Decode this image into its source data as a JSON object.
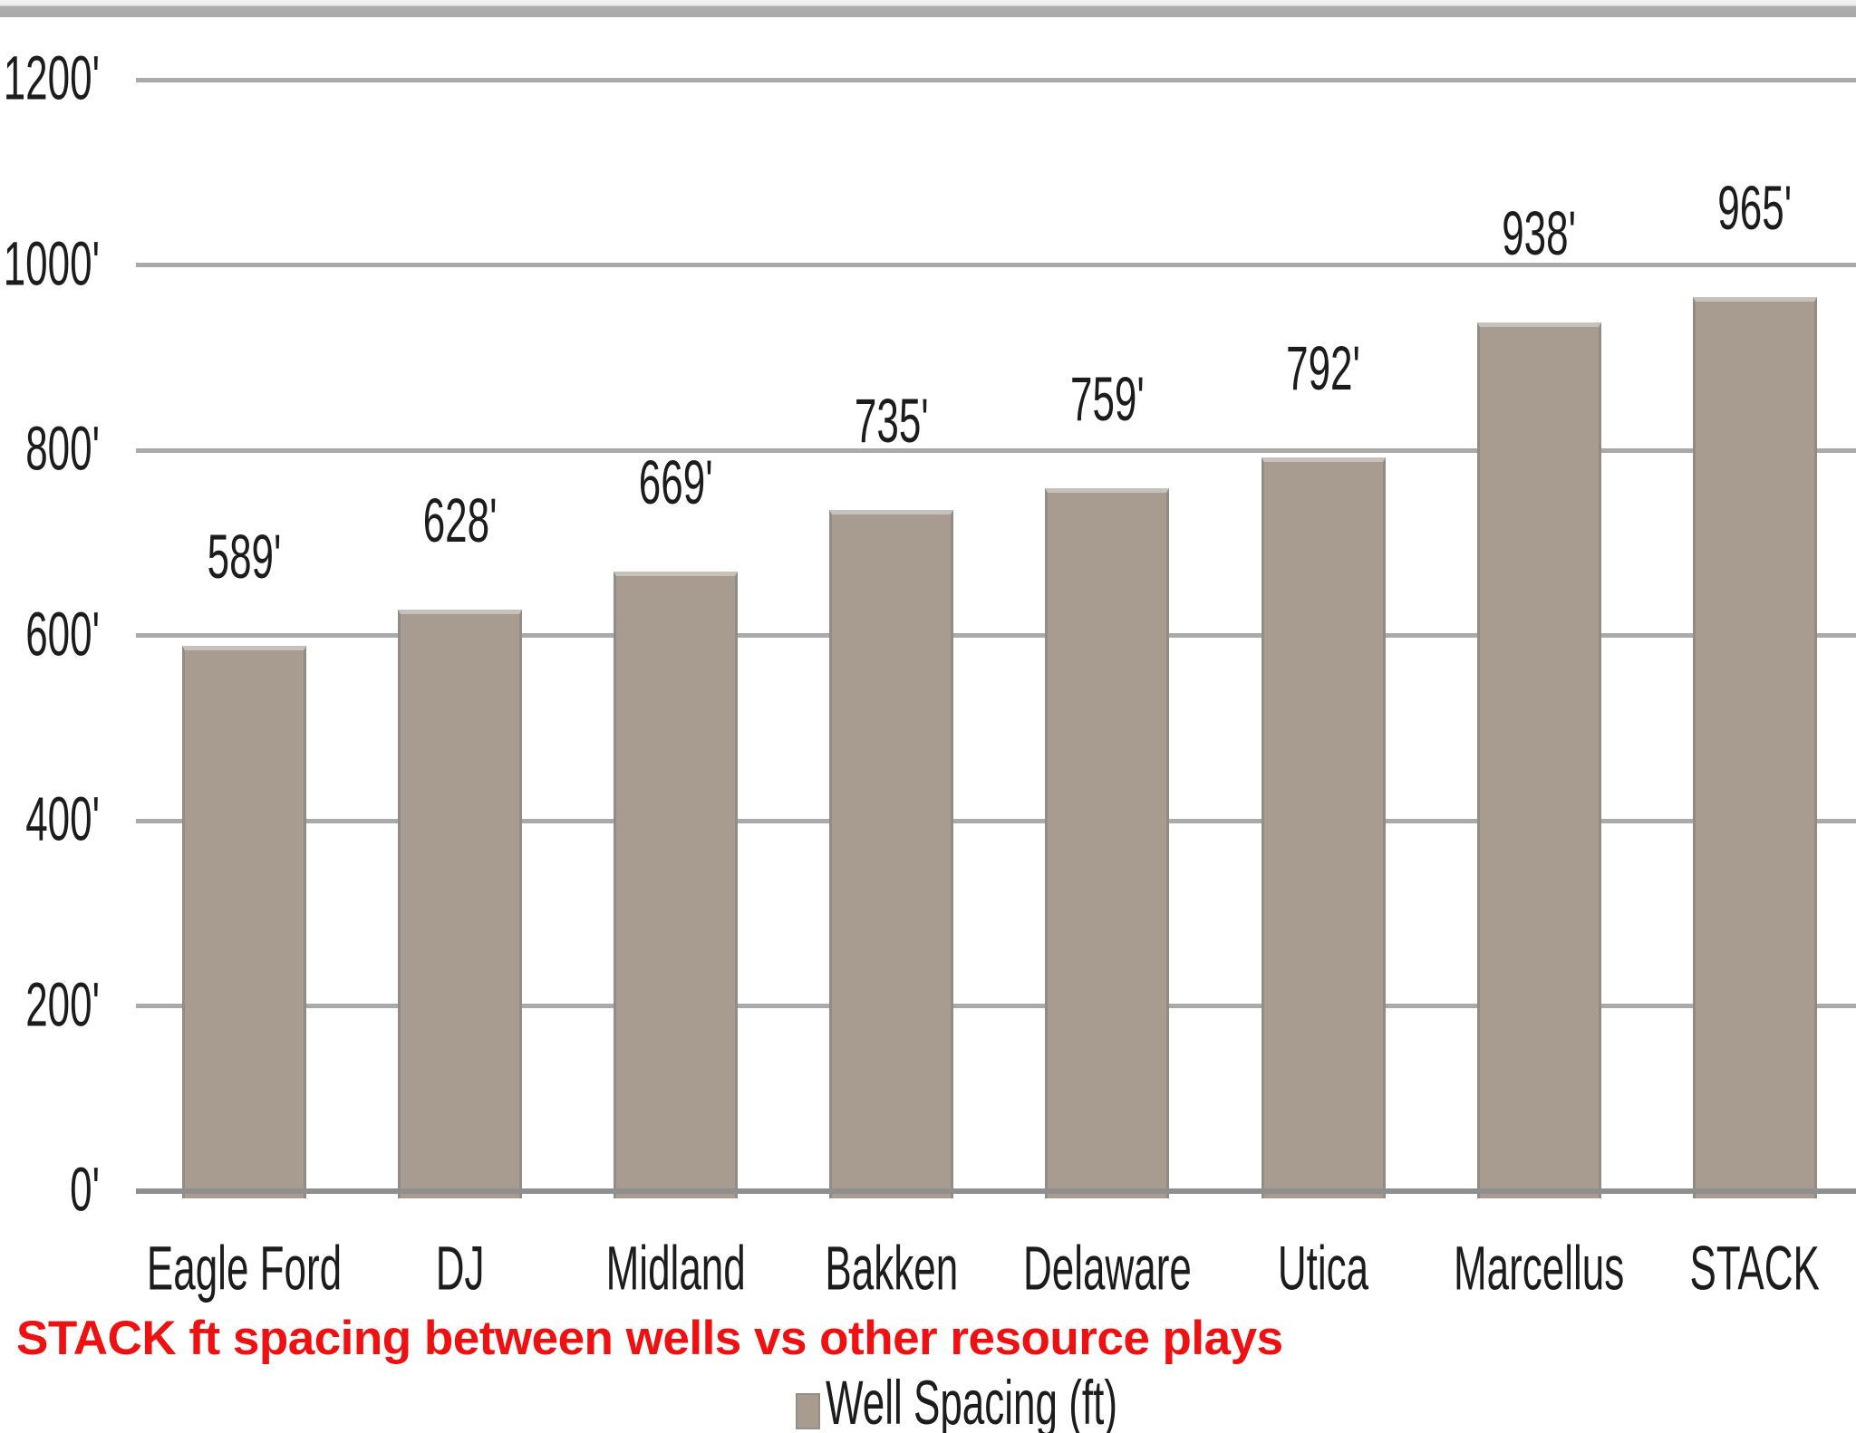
{
  "page": {
    "background": "#ffffff",
    "top_strip_light": "#ececec",
    "top_strip_dark": "#a9a9a9"
  },
  "chart_data": {
    "type": "bar",
    "categories": [
      "Eagle Ford",
      "DJ",
      "Midland",
      "Bakken",
      "Delaware",
      "Utica",
      "Marcellus",
      "STACK"
    ],
    "values": [
      589,
      628,
      669,
      735,
      759,
      792,
      938,
      965
    ],
    "value_labels": [
      "589'",
      "628'",
      "669'",
      "735'",
      "759'",
      "792'",
      "938'",
      "965'"
    ],
    "value_suffix": "'",
    "title": "",
    "xlabel": "",
    "ylabel": "",
    "ylim": [
      0,
      1200
    ],
    "y_tick_values": [
      0,
      200,
      400,
      600,
      800,
      1000,
      1200
    ],
    "y_ticks": [
      "0'",
      "200'",
      "400'",
      "600'",
      "800'",
      "1000'",
      "1200'"
    ],
    "grid": true,
    "gridline_color": "#aaaaaa",
    "bar_color": "#a89b8f",
    "bar_edge_color": "#918c85",
    "legend": "Well Spacing (ft)",
    "legend_position": "bottom-center"
  },
  "caption": {
    "text": "STACK ft spacing between wells vs other resource plays",
    "color": "#ee1111"
  }
}
